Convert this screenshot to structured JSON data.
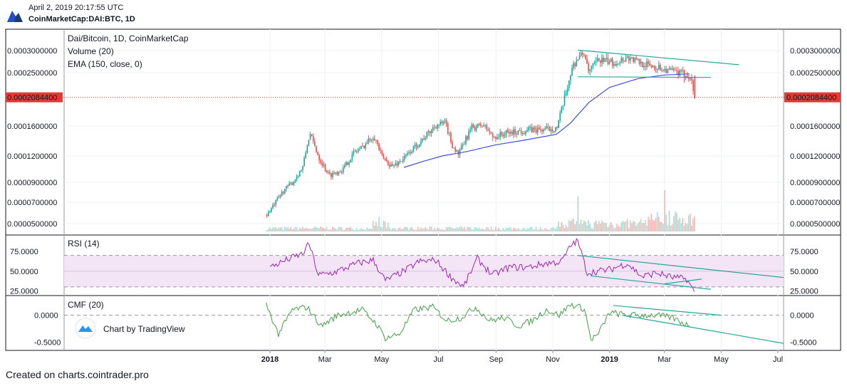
{
  "header": {
    "timestamp": "April 2, 2019 20:17:55 UTC",
    "symbol": "CoinMarketCap:DAI:BTC, 1D"
  },
  "watermark": "Chart by TradingView",
  "footer": "Created on charts.cointrader.pro",
  "colors": {
    "up": "#26a69a",
    "down": "#ef5350",
    "ema": "#3f51d6",
    "trendline": "#26a69a",
    "rsi": "#9c27b0",
    "rsi_band": "#f3e5f5",
    "cmf": "#43a047",
    "price_line": "#e53935",
    "frame": "#131722"
  },
  "chart_data": [
    {
      "type": "candlestick",
      "legend": [
        "Dai/Bitcoin, 1D, CoinMarketCap",
        "Volume (20)",
        "EMA (150, close, 0)"
      ],
      "x_ticks": [
        "2018",
        "Mar",
        "May",
        "Jul",
        "Sep",
        "Nov",
        "2019",
        "Mar",
        "May",
        "Jul"
      ],
      "y_ticks": [
        "0.0003000000",
        "0.0002500000",
        "0.0001600000",
        "0.0001200000",
        "0.0000900000",
        "0.0000700000",
        "0.0000500000"
      ],
      "last_price": "0.0002084400",
      "ylim": [
        5e-05,
        0.00031
      ],
      "close_path": [
        [
          "2017-12-28",
          5.8e-05
        ],
        [
          "2018-01-05",
          6.8e-05
        ],
        [
          "2018-01-15",
          8.2e-05
        ],
        [
          "2018-01-25",
          9e-05
        ],
        [
          "2018-02-05",
          0.000108
        ],
        [
          "2018-02-12",
          0.00015
        ],
        [
          "2018-02-22",
          0.000118
        ],
        [
          "2018-03-05",
          9.8e-05
        ],
        [
          "2018-03-20",
          0.000105
        ],
        [
          "2018-04-01",
          0.000125
        ],
        [
          "2018-04-10",
          0.000132
        ],
        [
          "2018-04-22",
          0.000148
        ],
        [
          "2018-05-01",
          0.000118
        ],
        [
          "2018-05-12",
          0.000108
        ],
        [
          "2018-05-25",
          0.000118
        ],
        [
          "2018-06-05",
          0.000132
        ],
        [
          "2018-06-18",
          0.000148
        ],
        [
          "2018-06-28",
          0.000162
        ],
        [
          "2018-07-08",
          0.000165
        ],
        [
          "2018-07-15",
          0.000135
        ],
        [
          "2018-07-22",
          0.000122
        ],
        [
          "2018-08-05",
          0.000158
        ],
        [
          "2018-08-18",
          0.000162
        ],
        [
          "2018-08-28",
          0.000145
        ],
        [
          "2018-09-10",
          0.00015
        ],
        [
          "2018-09-25",
          0.000153
        ],
        [
          "2018-10-08",
          0.000155
        ],
        [
          "2018-10-20",
          0.000155
        ],
        [
          "2018-11-05",
          0.000158
        ],
        [
          "2018-11-12",
          0.0002
        ],
        [
          "2018-11-22",
          0.000265
        ],
        [
          "2018-11-28",
          0.000285
        ],
        [
          "2018-12-05",
          0.000295
        ],
        [
          "2018-12-08",
          0.00025
        ],
        [
          "2018-12-20",
          0.00028
        ],
        [
          "2019-01-05",
          0.000272
        ],
        [
          "2019-01-20",
          0.000285
        ],
        [
          "2019-02-05",
          0.00027
        ],
        [
          "2019-02-20",
          0.000263
        ],
        [
          "2019-03-05",
          0.000255
        ],
        [
          "2019-03-20",
          0.000248
        ],
        [
          "2019-03-28",
          0.000245
        ],
        [
          "2019-04-02",
          0.0002084
        ]
      ],
      "ema_path": [
        [
          "2018-05-25",
          0.000107
        ],
        [
          "2018-06-15",
          0.000114
        ],
        [
          "2018-07-05",
          0.00012
        ],
        [
          "2018-08-01",
          0.000126
        ],
        [
          "2018-09-01",
          0.000135
        ],
        [
          "2018-10-01",
          0.000141
        ],
        [
          "2018-11-05",
          0.000149
        ],
        [
          "2018-11-20",
          0.000165
        ],
        [
          "2018-12-10",
          0.0002
        ],
        [
          "2019-01-01",
          0.000225
        ],
        [
          "2019-02-01",
          0.00024
        ],
        [
          "2019-03-01",
          0.000246
        ],
        [
          "2019-03-28",
          0.000248
        ]
      ],
      "volume_spikes": [
        [
          "2018-04-28",
          0.35
        ],
        [
          "2018-11-28",
          0.85
        ],
        [
          "2019-03-01",
          1.0
        ],
        [
          "2019-03-05",
          0.5
        ]
      ]
    },
    {
      "type": "line",
      "legend": [
        "RSI (14)"
      ],
      "y_ticks": [
        "75.0000",
        "50.0000",
        "25.0000"
      ],
      "bands": [
        30,
        70
      ],
      "ylim": [
        20,
        95
      ],
      "series": [
        {
          "points": [
            [
              "2018-01-01",
              55
            ],
            [
              "2018-01-20",
              65
            ],
            [
              "2018-02-05",
              72
            ],
            [
              "2018-02-12",
              85
            ],
            [
              "2018-02-22",
              45
            ],
            [
              "2018-03-10",
              48
            ],
            [
              "2018-04-05",
              60
            ],
            [
              "2018-04-22",
              64
            ],
            [
              "2018-05-05",
              38
            ],
            [
              "2018-05-25",
              50
            ],
            [
              "2018-06-10",
              62
            ],
            [
              "2018-06-28",
              64
            ],
            [
              "2018-07-15",
              42
            ],
            [
              "2018-07-28",
              30
            ],
            [
              "2018-08-12",
              66
            ],
            [
              "2018-08-28",
              45
            ],
            [
              "2018-09-15",
              55
            ],
            [
              "2018-10-05",
              55
            ],
            [
              "2018-10-25",
              60
            ],
            [
              "2018-11-10",
              62
            ],
            [
              "2018-11-22",
              85
            ],
            [
              "2018-11-28",
              88
            ],
            [
              "2018-12-08",
              48
            ],
            [
              "2019-01-01",
              52
            ],
            [
              "2019-01-20",
              60
            ],
            [
              "2019-02-05",
              43
            ],
            [
              "2019-02-20",
              48
            ],
            [
              "2019-03-10",
              42
            ],
            [
              "2019-03-25",
              40
            ],
            [
              "2019-04-02",
              24
            ]
          ]
        }
      ]
    },
    {
      "type": "line",
      "legend": [
        "CMF (20)"
      ],
      "y_ticks": [
        "0.0000",
        "-0.5000"
      ],
      "ylim": [
        -0.65,
        0.35
      ],
      "series": [
        {
          "points": [
            [
              "2017-12-28",
              0.2
            ],
            [
              "2018-01-10",
              -0.35
            ],
            [
              "2018-01-25",
              0.1
            ],
            [
              "2018-02-10",
              0.15
            ],
            [
              "2018-02-25",
              -0.2
            ],
            [
              "2018-03-15",
              0.0
            ],
            [
              "2018-04-10",
              0.1
            ],
            [
              "2018-04-25",
              -0.15
            ],
            [
              "2018-05-05",
              -0.42
            ],
            [
              "2018-05-20",
              -0.35
            ],
            [
              "2018-06-05",
              0.1
            ],
            [
              "2018-06-25",
              0.15
            ],
            [
              "2018-07-10",
              -0.1
            ],
            [
              "2018-07-25",
              -0.05
            ],
            [
              "2018-08-10",
              0.15
            ],
            [
              "2018-08-25",
              -0.1
            ],
            [
              "2018-09-10",
              -0.05
            ],
            [
              "2018-09-25",
              -0.2
            ],
            [
              "2018-10-10",
              -0.1
            ],
            [
              "2018-10-25",
              0.1
            ],
            [
              "2018-11-08",
              0.0
            ],
            [
              "2018-11-20",
              0.2
            ],
            [
              "2018-12-05",
              0.12
            ],
            [
              "2018-12-12",
              -0.45
            ],
            [
              "2018-12-20",
              -0.35
            ],
            [
              "2019-01-01",
              0.05
            ],
            [
              "2019-01-20",
              0.0
            ],
            [
              "2019-02-05",
              0.0
            ],
            [
              "2019-02-20",
              0.0
            ],
            [
              "2019-03-10",
              -0.05
            ],
            [
              "2019-03-28",
              -0.2
            ]
          ]
        }
      ]
    }
  ]
}
